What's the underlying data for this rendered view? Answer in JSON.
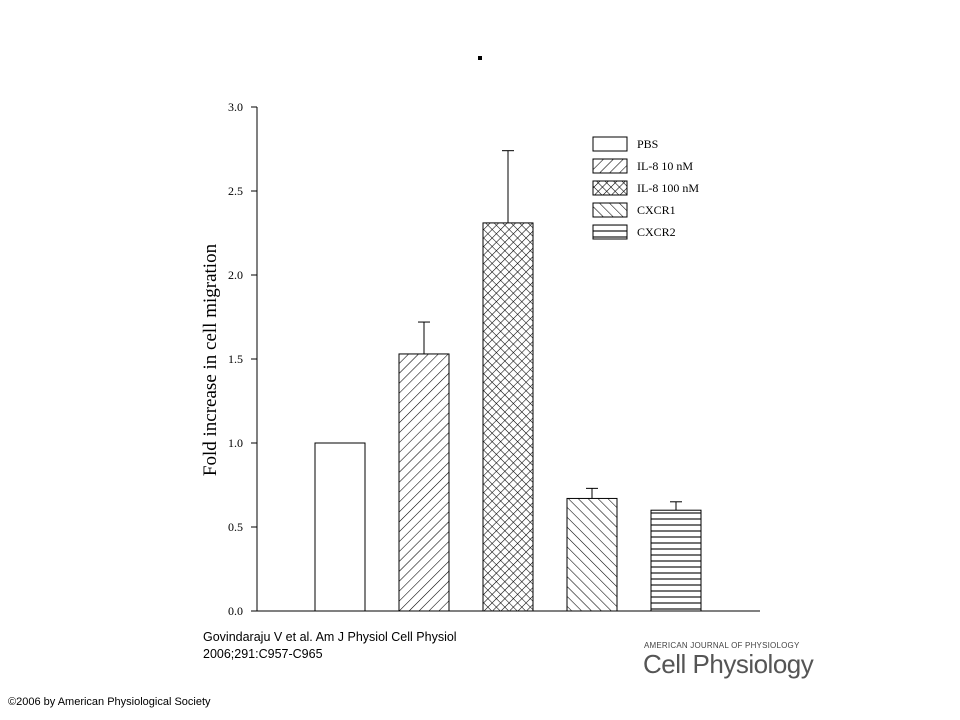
{
  "page": {
    "title_mark": ".",
    "citation_line1": "Govindaraju V et al. Am J Physiol Cell Physiol",
    "citation_line2": "2006;291:C957-C965",
    "copyright": "©2006 by American Physiological Society",
    "logo_small": "AMERICAN JOURNAL OF PHYSIOLOGY",
    "logo_big": "Cell Physiology"
  },
  "chart_data": {
    "type": "bar",
    "title": "",
    "xlabel": "",
    "ylabel": "Fold increase in cell migration",
    "ylim": [
      0,
      3.0
    ],
    "yticks": [
      0.0,
      0.5,
      1.0,
      1.5,
      2.0,
      2.5,
      3.0
    ],
    "ytick_labels": [
      "0.0",
      "0.5",
      "1.0",
      "1.5",
      "2.0",
      "2.5",
      "3.0"
    ],
    "legend_position": "top-right",
    "categories": [
      "PBS",
      "IL-8 10 nM",
      "IL-8 100 nM",
      "CXCR1",
      "CXCR2"
    ],
    "values": [
      1.0,
      1.53,
      2.31,
      0.67,
      0.6
    ],
    "errors": [
      0,
      0.19,
      0.43,
      0.06,
      0.05
    ],
    "patterns": [
      "none",
      "diagonal-up",
      "crosshatch",
      "diagonal-down",
      "horizontal"
    ],
    "colors": {
      "stroke": "#000000",
      "fill": "#ffffff"
    }
  }
}
